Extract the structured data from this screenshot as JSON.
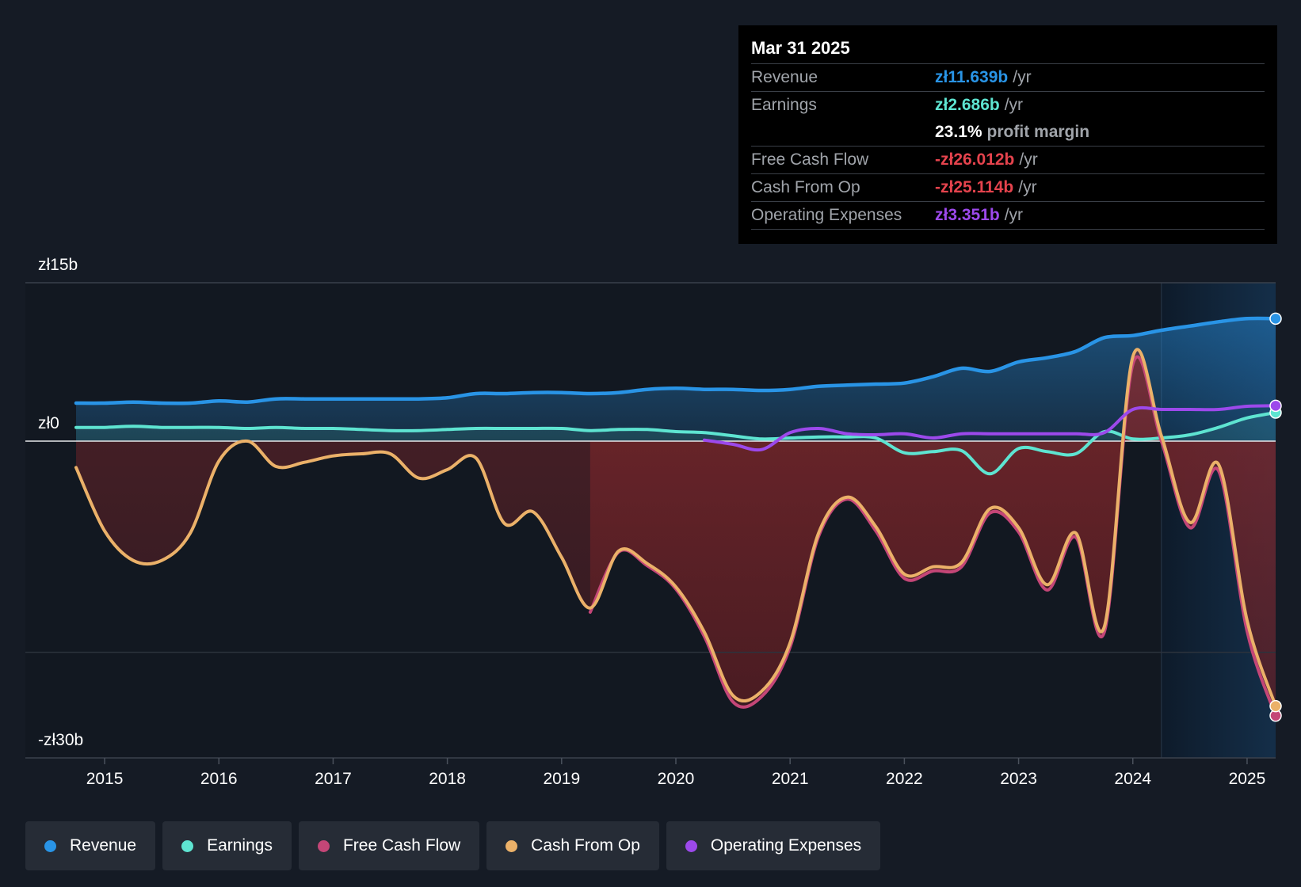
{
  "colors": {
    "revenue": "#2994e6",
    "earnings": "#5ee4d1",
    "fcf": "#c44677",
    "cfo": "#ebb169",
    "opex": "#9c49eb",
    "negative_text": "#e5434d",
    "background": "#151b25"
  },
  "tooltip": {
    "date": "Mar 31 2025",
    "rows": [
      {
        "label": "Revenue",
        "value": "zł11.639b",
        "unit": "/yr"
      },
      {
        "label": "Earnings",
        "value": "zł2.686b",
        "unit": "/yr"
      },
      {
        "label": "",
        "value": "23.1%",
        "unit": "profit margin"
      },
      {
        "label": "Free Cash Flow",
        "value": "-zł26.012b",
        "unit": "/yr"
      },
      {
        "label": "Cash From Op",
        "value": "-zł25.114b",
        "unit": "/yr"
      },
      {
        "label": "Operating Expenses",
        "value": "zł3.351b",
        "unit": "/yr"
      }
    ]
  },
  "legend": [
    {
      "label": "Revenue"
    },
    {
      "label": "Earnings"
    },
    {
      "label": "Free Cash Flow"
    },
    {
      "label": "Cash From Op"
    },
    {
      "label": "Operating Expenses"
    }
  ],
  "chart_data": {
    "type": "area",
    "title": "",
    "xlabel": "",
    "ylabel": "",
    "xlim": [
      2014.75,
      2025.25
    ],
    "ylim": [
      -30,
      15
    ],
    "y_tick_labels": [
      "zł15b",
      "zł0",
      "-zł30b"
    ],
    "x_ticks": [
      2015,
      2016,
      2017,
      2018,
      2019,
      2020,
      2021,
      2022,
      2023,
      2024,
      2025
    ],
    "x_tick_labels": [
      "2015",
      "2016",
      "2017",
      "2018",
      "2019",
      "2020",
      "2021",
      "2022",
      "2023",
      "2024",
      "2025"
    ],
    "grid_values": [
      15,
      0,
      -20
    ],
    "forecast_start": 2024.25,
    "series": [
      {
        "name": "Revenue",
        "x": [
          2014.75,
          2015.0,
          2015.25,
          2015.5,
          2015.75,
          2016.0,
          2016.25,
          2016.5,
          2016.75,
          2017.0,
          2017.25,
          2017.5,
          2017.75,
          2018.0,
          2018.25,
          2018.5,
          2018.75,
          2019.0,
          2019.25,
          2019.5,
          2019.75,
          2020.0,
          2020.25,
          2020.5,
          2020.75,
          2021.0,
          2021.25,
          2021.5,
          2021.75,
          2022.0,
          2022.25,
          2022.5,
          2022.75,
          2023.0,
          2023.25,
          2023.5,
          2023.75,
          2024.0,
          2024.25,
          2024.5,
          2024.75,
          2025.0,
          2025.25
        ],
        "values": [
          3.6,
          3.6,
          3.7,
          3.6,
          3.6,
          3.8,
          3.7,
          4.0,
          4.0,
          4.0,
          4.0,
          4.0,
          4.0,
          4.1,
          4.5,
          4.5,
          4.6,
          4.6,
          4.5,
          4.6,
          4.9,
          5.0,
          4.9,
          4.9,
          4.8,
          4.9,
          5.2,
          5.3,
          5.4,
          5.5,
          6.1,
          6.9,
          6.6,
          7.5,
          7.9,
          8.5,
          9.8,
          10.0,
          10.5,
          10.9,
          11.3,
          11.6,
          11.6
        ]
      },
      {
        "name": "Earnings",
        "x": [
          2014.75,
          2015.0,
          2015.25,
          2015.5,
          2015.75,
          2016.0,
          2016.25,
          2016.5,
          2016.75,
          2017.0,
          2017.25,
          2017.5,
          2017.75,
          2018.0,
          2018.25,
          2018.5,
          2018.75,
          2019.0,
          2019.25,
          2019.5,
          2019.75,
          2020.0,
          2020.25,
          2020.5,
          2020.75,
          2021.0,
          2021.25,
          2021.5,
          2021.75,
          2022.0,
          2022.25,
          2022.5,
          2022.75,
          2023.0,
          2023.25,
          2023.5,
          2023.75,
          2024.0,
          2024.25,
          2024.5,
          2024.75,
          2025.0,
          2025.25
        ],
        "values": [
          1.3,
          1.3,
          1.4,
          1.3,
          1.3,
          1.3,
          1.2,
          1.3,
          1.2,
          1.2,
          1.1,
          1.0,
          1.0,
          1.1,
          1.2,
          1.2,
          1.2,
          1.2,
          1.0,
          1.1,
          1.1,
          0.9,
          0.8,
          0.5,
          0.2,
          0.3,
          0.4,
          0.4,
          0.3,
          -1.1,
          -1.0,
          -0.9,
          -3.1,
          -0.7,
          -1.0,
          -1.2,
          0.9,
          0.2,
          0.3,
          0.6,
          1.3,
          2.2,
          2.7
        ]
      },
      {
        "name": "Free Cash Flow",
        "x": [
          2019.25,
          2019.5,
          2019.75,
          2020.0,
          2020.25,
          2020.5,
          2020.75,
          2021.0,
          2021.25,
          2021.5,
          2021.75,
          2022.0,
          2022.25,
          2022.5,
          2022.75,
          2023.0,
          2023.25,
          2023.5,
          2023.75,
          2024.0,
          2024.25,
          2024.5,
          2024.75,
          2025.0,
          2025.25
        ],
        "values": [
          -16.2,
          -10.5,
          -11.8,
          -14.0,
          -18.5,
          -24.7,
          -24.2,
          -19.5,
          -9.0,
          -5.5,
          -8.5,
          -13.0,
          -12.3,
          -11.9,
          -6.8,
          -8.6,
          -14.1,
          -9.1,
          -18.1,
          7.3,
          0.0,
          -8.2,
          -2.8,
          -18.0,
          -26.0
        ]
      },
      {
        "name": "Cash From Op",
        "x": [
          2014.75,
          2015.0,
          2015.25,
          2015.5,
          2015.75,
          2016.0,
          2016.25,
          2016.5,
          2016.75,
          2017.0,
          2017.25,
          2017.5,
          2017.75,
          2018.0,
          2018.25,
          2018.5,
          2018.75,
          2019.0,
          2019.25,
          2019.5,
          2019.75,
          2020.0,
          2020.25,
          2020.5,
          2020.75,
          2021.0,
          2021.25,
          2021.5,
          2021.75,
          2022.0,
          2022.25,
          2022.5,
          2022.75,
          2023.0,
          2023.25,
          2023.5,
          2023.75,
          2024.0,
          2024.25,
          2024.5,
          2024.75,
          2025.0,
          2025.25
        ],
        "values": [
          -2.5,
          -8.5,
          -11.3,
          -11.3,
          -8.7,
          -1.9,
          0.0,
          -2.4,
          -2.0,
          -1.4,
          -1.2,
          -1.2,
          -3.5,
          -2.7,
          -1.6,
          -7.8,
          -6.7,
          -11.0,
          -15.8,
          -10.4,
          -11.6,
          -13.8,
          -18.1,
          -24.1,
          -23.7,
          -19.1,
          -8.7,
          -5.3,
          -8.1,
          -12.6,
          -11.9,
          -11.5,
          -6.4,
          -8.2,
          -13.6,
          -8.7,
          -17.6,
          8.0,
          0.5,
          -7.7,
          -2.2,
          -17.0,
          -25.1
        ]
      },
      {
        "name": "Operating Expenses",
        "x": [
          2020.25,
          2020.5,
          2020.75,
          2021.0,
          2021.25,
          2021.5,
          2021.75,
          2022.0,
          2022.25,
          2022.5,
          2022.75,
          2023.0,
          2023.25,
          2023.5,
          2023.75,
          2024.0,
          2024.25,
          2024.5,
          2024.75,
          2025.0,
          2025.25
        ],
        "values": [
          0.1,
          -0.3,
          -0.8,
          0.8,
          1.2,
          0.7,
          0.6,
          0.7,
          0.3,
          0.7,
          0.7,
          0.7,
          0.7,
          0.7,
          0.8,
          3.0,
          3.0,
          3.0,
          3.0,
          3.3,
          3.35
        ]
      }
    ]
  }
}
